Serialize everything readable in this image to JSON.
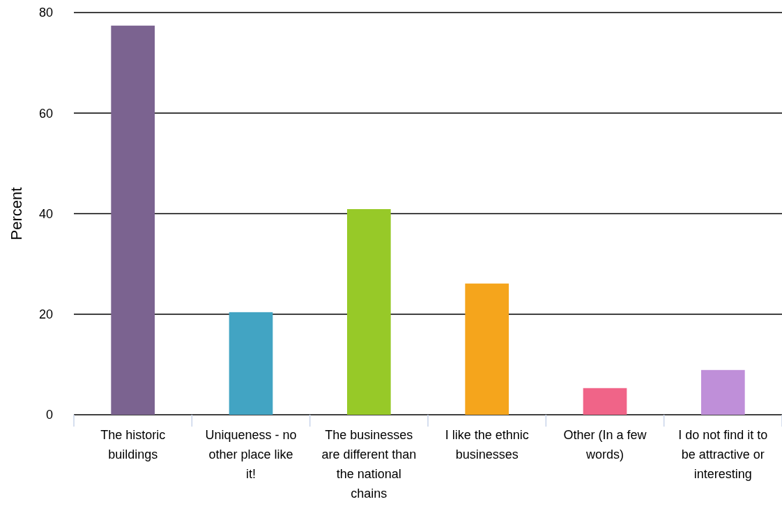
{
  "chart_data": {
    "type": "bar",
    "ylabel": "Percent",
    "categories": [
      "The historic buildings",
      "Uniqueness - no other place like it!",
      "The businesses are different than the national chains",
      "I like the ethnic businesses",
      "Other (In a few words)",
      "I do not find it to be attractive or interesting"
    ],
    "values": [
      77.4,
      20.4,
      40.9,
      26.1,
      5.3,
      8.9
    ],
    "colors": [
      "#7b6390",
      "#42a4c3",
      "#97c928",
      "#f5a51c",
      "#f06488",
      "#bf8fd9"
    ],
    "ylim": [
      0,
      80
    ],
    "yticks": [
      0,
      20,
      40,
      60,
      80
    ],
    "grid": "y"
  }
}
